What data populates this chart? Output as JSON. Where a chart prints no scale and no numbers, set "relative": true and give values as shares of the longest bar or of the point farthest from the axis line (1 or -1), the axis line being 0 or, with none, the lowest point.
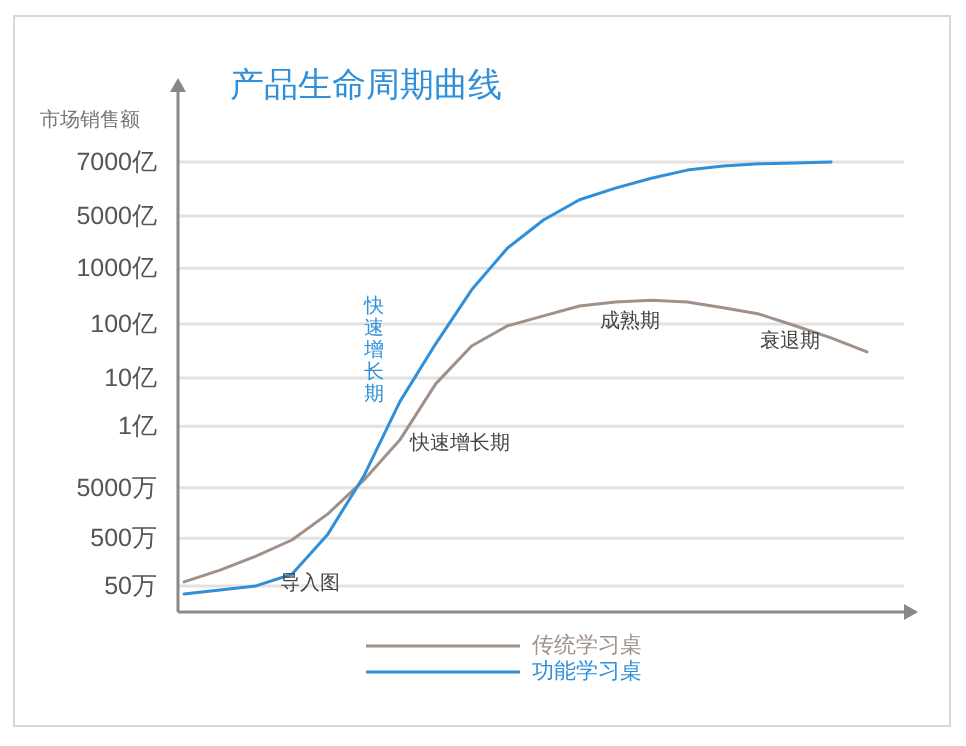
{
  "chart_data": {
    "type": "line",
    "title": "产品生命周期曲线",
    "ylabel": "市场销售额",
    "relative": true,
    "categories": [
      null,
      null,
      null,
      null,
      null,
      null,
      null,
      null,
      null,
      null,
      null,
      null,
      null,
      null,
      null,
      null,
      null,
      null,
      null,
      null
    ],
    "legend": "bottom",
    "ref_lines": [
      {
        "axis": "y",
        "value": 0.058,
        "label": "50万",
        "color": "#e2e2e2"
      },
      {
        "axis": "y",
        "value": 0.164,
        "label": "500万",
        "color": "#e2e2e2"
      },
      {
        "axis": "y",
        "value": 0.276,
        "label": "5000万",
        "color": "#e2e2e2"
      },
      {
        "axis": "y",
        "value": 0.413,
        "label": "1亿",
        "color": "#e2e2e2"
      },
      {
        "axis": "y",
        "value": 0.52,
        "label": "10亿",
        "color": "#e2e2e2"
      },
      {
        "axis": "y",
        "value": 0.64,
        "label": "100亿",
        "color": "#e2e2e2"
      },
      {
        "axis": "y",
        "value": 0.764,
        "label": "1000亿",
        "color": "#e2e2e2"
      },
      {
        "axis": "y",
        "value": 0.88,
        "label": "5000亿",
        "color": "#e2e2e2"
      },
      {
        "axis": "y",
        "value": 1.0,
        "label": "7000亿",
        "color": "#e2e2e2"
      }
    ],
    "series": [
      {
        "name": "传统学习桌",
        "color": "#a09088",
        "values": [
          0.067,
          0.093,
          0.124,
          0.16,
          0.218,
          0.293,
          0.382,
          0.507,
          0.591,
          0.636,
          0.658,
          0.68,
          0.689,
          0.693,
          0.689,
          0.676,
          0.662,
          0.636,
          0.609,
          0.578
        ]
      },
      {
        "name": "功能学习桌",
        "color": "#2f8fd8",
        "values": [
          0.04,
          0.049,
          0.058,
          0.084,
          0.173,
          0.302,
          0.467,
          0.596,
          0.716,
          0.809,
          0.871,
          0.916,
          0.942,
          0.964,
          0.982,
          0.991,
          0.996,
          0.998,
          1.0,
          null
        ]
      }
    ],
    "annotations": [
      "导入图",
      "快速增长期",
      "快速增长期",
      "成熟期",
      "衰退期"
    ]
  }
}
